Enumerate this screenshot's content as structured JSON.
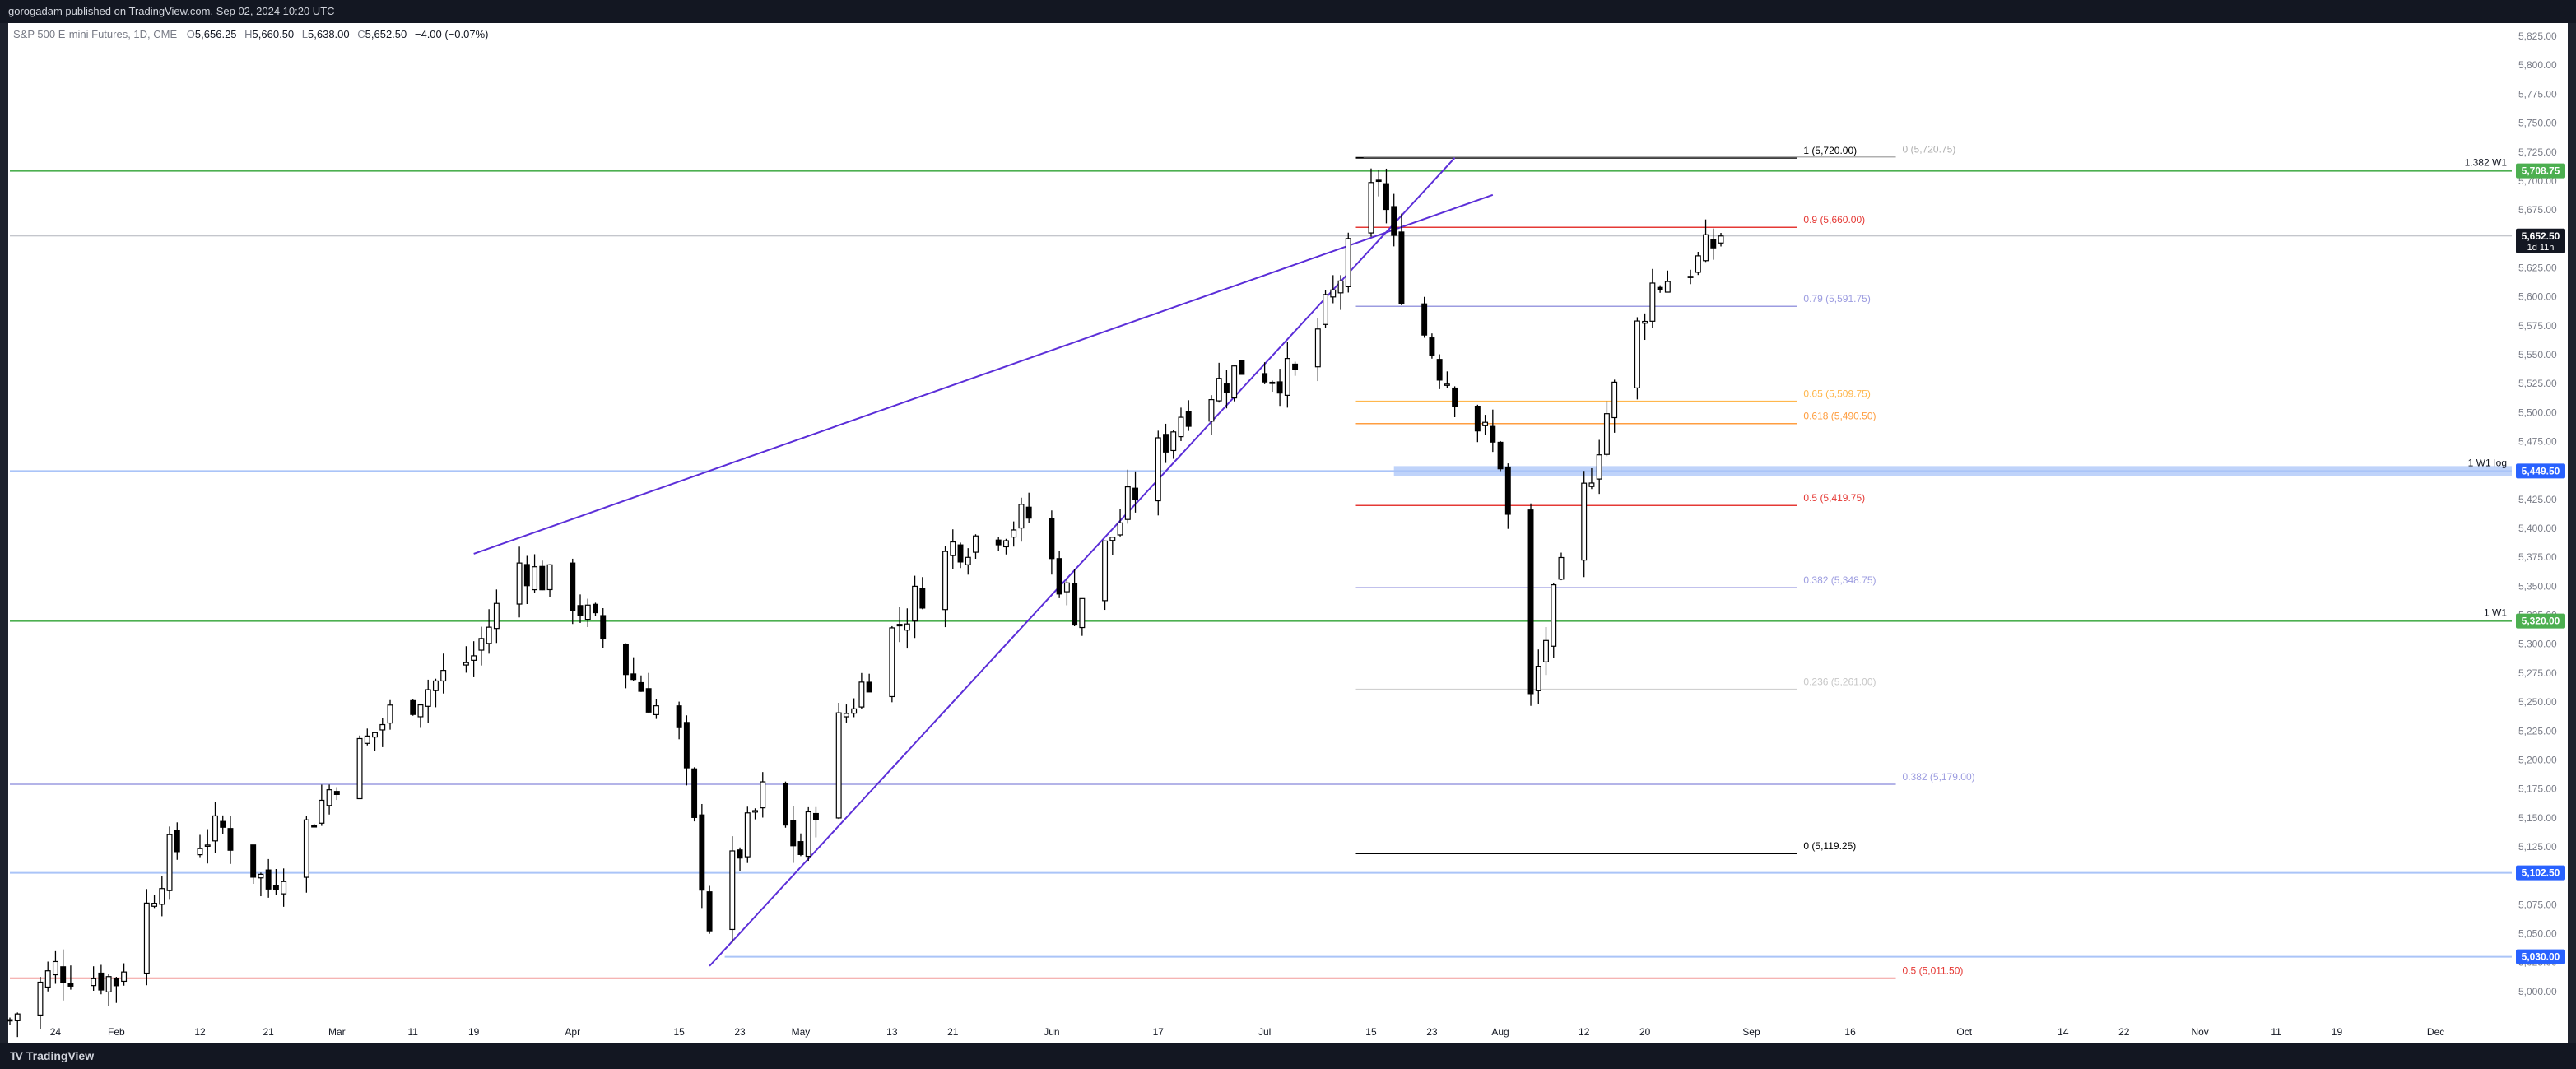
{
  "header": {
    "publisher_line": "gorogadam published on TradingView.com, Sep 02, 2024 10:20 UTC"
  },
  "footer": {
    "logo_text": "TradingView",
    "logo_mark": "TV"
  },
  "legend": {
    "symbol": "S&P 500 E-mini Futures, 1D, CME",
    "open_label": "O",
    "open": "5,656.25",
    "high_label": "H",
    "high": "5,660.50",
    "low_label": "L",
    "low": "5,638.00",
    "close_label": "C",
    "close": "5,652.50",
    "change": "−4.00 (−0.07%)"
  },
  "colors": {
    "background": "#ffffff",
    "frame": "#1e222d",
    "up_body": "#ffffff",
    "down_body": "#000000",
    "wick": "#000000",
    "trendline": "#5b2ed8",
    "green": "#4caf50",
    "red": "#e53935",
    "blue_zone": "#aac4f8",
    "orange": "#ffb74d",
    "axis_text": "#787b86",
    "badge_blue": "#2962ff"
  },
  "chart_data": {
    "type": "candlestick",
    "title": "",
    "ylim": [
      4975,
      5835
    ],
    "y_ticks": [
      "5,825.00",
      "5,800.00",
      "5,775.00",
      "5,750.00",
      "5,725.00",
      "5,700.00",
      "5,675.00",
      "5,650.00",
      "5,625.00",
      "5,600.00",
      "5,575.00",
      "5,550.00",
      "5,525.00",
      "5,500.00",
      "5,475.00",
      "5,450.00",
      "5,425.00",
      "5,400.00",
      "5,375.00",
      "5,350.00",
      "5,325.00",
      "5,300.00",
      "5,275.00",
      "5,250.00",
      "5,225.00",
      "5,200.00",
      "5,175.00",
      "5,150.00",
      "5,125.00",
      "5,100.00",
      "5,075.00",
      "5,050.00",
      "5,025.00",
      "5,000.00"
    ],
    "y_tick_values": [
      5825,
      5800,
      5775,
      5750,
      5725,
      5700,
      5675,
      5650,
      5625,
      5600,
      5575,
      5550,
      5525,
      5500,
      5475,
      5450,
      5425,
      5400,
      5375,
      5350,
      5325,
      5300,
      5275,
      5250,
      5225,
      5200,
      5175,
      5150,
      5125,
      5100,
      5075,
      5050,
      5025,
      5000
    ],
    "x_range": [
      "2024-01-18",
      "2024-12-12"
    ],
    "x_ticks": [
      {
        "label": "24",
        "date": "2024-01-24"
      },
      {
        "label": "Feb",
        "date": "2024-02-01"
      },
      {
        "label": "12",
        "date": "2024-02-12"
      },
      {
        "label": "21",
        "date": "2024-02-21"
      },
      {
        "label": "Mar",
        "date": "2024-03-01"
      },
      {
        "label": "11",
        "date": "2024-03-11"
      },
      {
        "label": "19",
        "date": "2024-03-19"
      },
      {
        "label": "Apr",
        "date": "2024-04-01"
      },
      {
        "label": "15",
        "date": "2024-04-15"
      },
      {
        "label": "23",
        "date": "2024-04-23"
      },
      {
        "label": "May",
        "date": "2024-05-01"
      },
      {
        "label": "13",
        "date": "2024-05-13"
      },
      {
        "label": "21",
        "date": "2024-05-21"
      },
      {
        "label": "Jun",
        "date": "2024-06-03"
      },
      {
        "label": "17",
        "date": "2024-06-17"
      },
      {
        "label": "Jul",
        "date": "2024-07-01"
      },
      {
        "label": "15",
        "date": "2024-07-15"
      },
      {
        "label": "23",
        "date": "2024-07-23"
      },
      {
        "label": "Aug",
        "date": "2024-08-01"
      },
      {
        "label": "12",
        "date": "2024-08-12"
      },
      {
        "label": "20",
        "date": "2024-08-20"
      },
      {
        "label": "Sep",
        "date": "2024-09-03"
      },
      {
        "label": "16",
        "date": "2024-09-16"
      },
      {
        "label": "Oct",
        "date": "2024-10-01"
      },
      {
        "label": "14",
        "date": "2024-10-14"
      },
      {
        "label": "22",
        "date": "2024-10-22"
      },
      {
        "label": "Nov",
        "date": "2024-11-01"
      },
      {
        "label": "11",
        "date": "2024-11-11"
      },
      {
        "label": "19",
        "date": "2024-11-19"
      },
      {
        "label": "Dec",
        "date": "2024-12-02"
      }
    ],
    "anchor_points": [
      {
        "date": "2024-01-18",
        "close": 4975
      },
      {
        "date": "2024-01-24",
        "close": 5020
      },
      {
        "date": "2024-02-01",
        "close": 5010
      },
      {
        "date": "2024-02-08",
        "close": 5120
      },
      {
        "date": "2024-02-15",
        "close": 5140
      },
      {
        "date": "2024-02-21",
        "close": 5090
      },
      {
        "date": "2024-03-01",
        "close": 5185
      },
      {
        "date": "2024-03-08",
        "close": 5240
      },
      {
        "date": "2024-03-19",
        "close": 5290
      },
      {
        "date": "2024-03-25",
        "close": 5370
      },
      {
        "date": "2024-04-01",
        "close": 5340
      },
      {
        "date": "2024-04-05",
        "close": 5305
      },
      {
        "date": "2024-04-15",
        "close": 5220
      },
      {
        "date": "2024-04-19",
        "close": 5060
      },
      {
        "date": "2024-04-26",
        "close": 5170
      },
      {
        "date": "2024-05-01",
        "close": 5120
      },
      {
        "date": "2024-05-06",
        "close": 5230
      },
      {
        "date": "2024-05-13",
        "close": 5310
      },
      {
        "date": "2024-05-21",
        "close": 5385
      },
      {
        "date": "2024-05-31",
        "close": 5410
      },
      {
        "date": "2024-06-06",
        "close": 5330
      },
      {
        "date": "2024-06-13",
        "close": 5420
      },
      {
        "date": "2024-06-20",
        "close": 5500
      },
      {
        "date": "2024-06-28",
        "close": 5540
      },
      {
        "date": "2024-07-05",
        "close": 5530
      },
      {
        "date": "2024-07-10",
        "close": 5600
      },
      {
        "date": "2024-07-16",
        "close": 5705
      },
      {
        "date": "2024-07-19",
        "close": 5610
      },
      {
        "date": "2024-07-24",
        "close": 5540
      },
      {
        "date": "2024-08-01",
        "close": 5460
      },
      {
        "date": "2024-08-05",
        "close": 5250
      },
      {
        "date": "2024-08-08",
        "close": 5335
      },
      {
        "date": "2024-08-15",
        "close": 5500
      },
      {
        "date": "2024-08-21",
        "close": 5610
      },
      {
        "date": "2024-08-27",
        "close": 5630
      },
      {
        "date": "2024-08-30",
        "close": 5652.5
      }
    ],
    "current_price": {
      "label": "5,652.50",
      "countdown": "1d 11h",
      "value": 5652.5
    },
    "levels": [
      {
        "name": "1.382 W1",
        "badge": "5,708.75",
        "value": 5708.75,
        "color": "#4caf50",
        "from": "2024-01-18"
      },
      {
        "name": "1 W1 log",
        "badge": "5,449.50",
        "value": 5449.5,
        "color": "#aac4f8",
        "from": "2024-01-18"
      },
      {
        "name": "1 W1",
        "badge": "5,320.00",
        "value": 5320.0,
        "color": "#4caf50",
        "from": "2024-01-18"
      },
      {
        "name": "",
        "badge": "5,102.50",
        "value": 5102.5,
        "color": "#aac4f8",
        "from": "2024-01-18"
      },
      {
        "name": "",
        "badge": "5,030.00",
        "value": 5030.0,
        "color": "#aac4f8",
        "from": "2024-04-21"
      }
    ],
    "fib_set_1": [
      {
        "label": "1 (5,720.00)",
        "value": 5720.0,
        "color": "#000000"
      },
      {
        "label": "0.9 (5,660.00)",
        "value": 5660.0,
        "color": "#e53935"
      },
      {
        "label": "0.79 (5,591.75)",
        "value": 5591.75,
        "color": "#9c9ce0"
      },
      {
        "label": "0.65 (5,509.75)",
        "value": 5509.75,
        "color": "#ffb74d"
      },
      {
        "label": "0.618 (5,490.50)",
        "value": 5490.5,
        "color": "#ff9e40"
      },
      {
        "label": "0.5 (5,419.75)",
        "value": 5419.75,
        "color": "#e53935"
      },
      {
        "label": "0.382 (5,348.75)",
        "value": 5348.75,
        "color": "#9c9ce0"
      },
      {
        "label": "0.236 (5,261.00)",
        "value": 5261.0,
        "color": "#d0d0d0"
      },
      {
        "label": "0 (5,119.25)",
        "value": 5119.25,
        "color": "#000000"
      }
    ],
    "fib_set_2": [
      {
        "label": "0 (5,720.75)",
        "value": 5720.75,
        "color": "#b0b0b0"
      },
      {
        "label": "0.382 (5,179.00)",
        "value": 5179.0,
        "color": "#9c9ce0"
      },
      {
        "label": "0.5 (5,011.50)",
        "value": 5011.5,
        "color": "#e53935"
      }
    ],
    "trendlines": [
      {
        "from": {
          "date": "2024-03-19",
          "value": 5378
        },
        "to": {
          "date": "2024-07-31",
          "value": 5688
        }
      },
      {
        "from": {
          "date": "2024-04-19",
          "value": 5022
        },
        "to": {
          "date": "2024-07-26",
          "value": 5720
        }
      }
    ]
  }
}
